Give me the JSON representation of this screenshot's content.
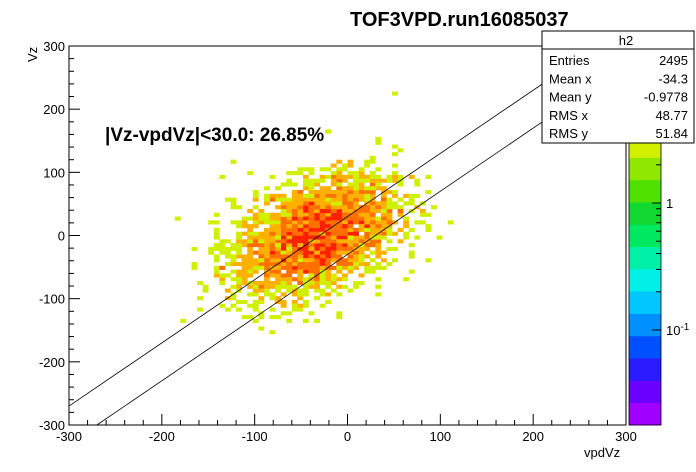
{
  "chart_data": {
    "type": "heatmap",
    "title": "TOF3VPD.run16085037",
    "xlabel": "vpdVz",
    "ylabel": "Vz",
    "xlim": [
      -300,
      300
    ],
    "ylim": [
      -300,
      300
    ],
    "x_ticks": [
      "-300",
      "-200",
      "-100",
      "0",
      "100",
      "200",
      "300"
    ],
    "y_ticks": [
      "-300",
      "-200",
      "-100",
      "0",
      "100",
      "200",
      "300"
    ],
    "annotation": "|Vz-vpdVz|<30.0: 26.85%",
    "lines": [
      {
        "description": "Vz = vpdVz + 30",
        "slope": 1,
        "intercept": 30
      },
      {
        "description": "Vz = vpdVz - 30",
        "slope": 1,
        "intercept": -30
      }
    ],
    "stats_box": {
      "name": "h2",
      "rows": [
        {
          "label": "Entries",
          "value": "2495"
        },
        {
          "label": "Mean x",
          "value": "-34.3"
        },
        {
          "label": "Mean y",
          "value": "-0.9778"
        },
        {
          "label": "RMS x",
          "value": "48.77"
        },
        {
          "label": "RMS y",
          "value": "51.84"
        }
      ]
    },
    "color_scale": {
      "type": "log",
      "labels": [
        "1",
        "10^-1"
      ],
      "palette": [
        "#a000ff",
        "#6a00ff",
        "#2a1cff",
        "#0050ff",
        "#0090ff",
        "#00c8ff",
        "#00f0e8",
        "#00f0a8",
        "#00e860",
        "#10d830",
        "#50e000",
        "#90e800",
        "#d0f000",
        "#f8e000",
        "#ffb000",
        "#ff7000",
        "#ff2000"
      ]
    },
    "distribution": {
      "mean_x": -34.3,
      "mean_y": -0.9778,
      "rms_x": 48.77,
      "rms_y": 51.84,
      "entries": 2495
    }
  }
}
